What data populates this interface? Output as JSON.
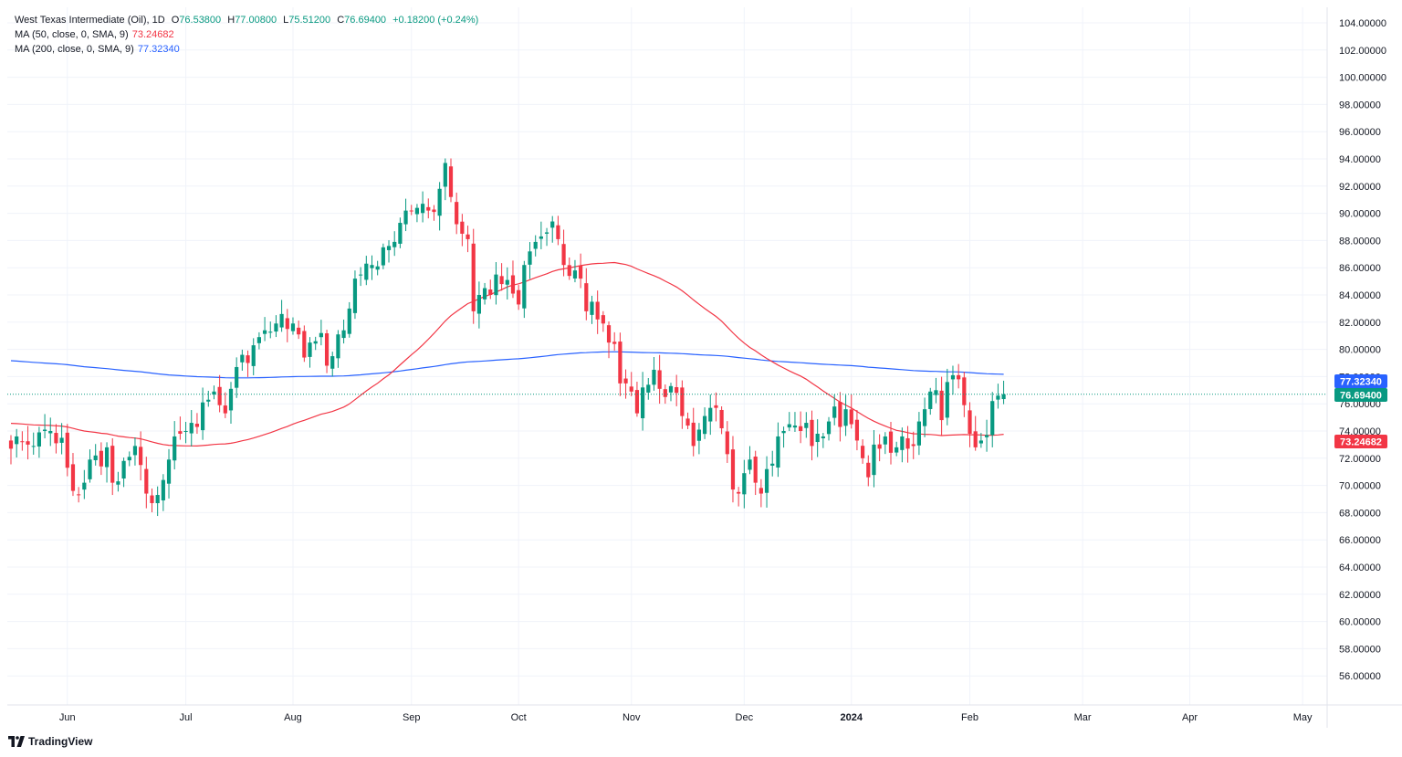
{
  "legend": {
    "symbol": "West Texas Intermediate (Oil), 1D",
    "open_label": "O",
    "open": "76.53800",
    "high_label": "H",
    "high": "77.00800",
    "low_label": "L",
    "low": "75.51200",
    "close_label": "C",
    "close": "76.69400",
    "change": "+0.18200 (+0.24%)",
    "ma50_label": "MA (50, close, 0, SMA, 9)",
    "ma50_value": "73.24682",
    "ma200_label": "MA (200, close, 0, SMA, 9)",
    "ma200_value": "77.32340"
  },
  "price_tags": {
    "ma200": "77.32340",
    "last": "76.69400",
    "ma50": "73.24682"
  },
  "brand": "TradingView",
  "colors": {
    "up": "#089981",
    "down": "#f23645",
    "ma50": "#f23645",
    "ma200": "#2962ff",
    "grid": "#f0f3fa",
    "last_line": "#089981"
  },
  "chart_data": {
    "type": "candlestick",
    "title": "West Texas Intermediate (Oil), 1D",
    "ylim": [
      54.5,
      105.0
    ],
    "y_ticks": [
      "104.00000",
      "102.00000",
      "100.00000",
      "98.00000",
      "96.00000",
      "94.00000",
      "92.00000",
      "90.00000",
      "88.00000",
      "86.00000",
      "84.00000",
      "82.00000",
      "80.00000",
      "78.00000",
      "76.00000",
      "74.00000",
      "72.00000",
      "70.00000",
      "68.00000",
      "66.00000",
      "64.00000",
      "62.00000",
      "60.00000",
      "58.00000",
      "56.00000"
    ],
    "x_ticks": [
      {
        "label": "Jun",
        "index": 10
      },
      {
        "label": "Jul",
        "index": 31
      },
      {
        "label": "Aug",
        "index": 50
      },
      {
        "label": "Sep",
        "index": 71
      },
      {
        "label": "Oct",
        "index": 90
      },
      {
        "label": "Nov",
        "index": 110
      },
      {
        "label": "Dec",
        "index": 130
      },
      {
        "label": "2024",
        "index": 149
      },
      {
        "label": "Feb",
        "index": 170
      },
      {
        "label": "Mar",
        "index": 190
      },
      {
        "label": "Apr",
        "index": 209
      },
      {
        "label": "May",
        "index": 229
      }
    ],
    "total_slots": 234,
    "series": [
      {
        "name": "WTI close",
        "type": "candle_close",
        "closes": [
          72.7,
          73.6,
          73.2,
          73.0,
          72.9,
          73.9,
          74.1,
          74.0,
          73.1,
          73.5,
          71.3,
          69.6,
          69.3,
          70.2,
          71.9,
          72.2,
          71.4,
          72.8,
          70.2,
          70.3,
          71.8,
          72.1,
          72.9,
          71.5,
          69.4,
          68.7,
          69.3,
          70.4,
          71.9,
          73.6,
          73.8,
          74.0,
          74.6,
          74.3,
          76.1,
          76.3,
          76.9,
          75.9,
          75.3,
          77.1,
          78.7,
          79.6,
          79.0,
          80.3,
          80.9,
          81.4,
          81.3,
          81.9,
          82.6,
          81.5,
          81.9,
          81.1,
          79.4,
          80.5,
          80.6,
          81.2,
          78.8,
          79.5,
          81.1,
          81.4,
          83.0,
          85.2,
          85.5,
          86.3,
          86.2,
          86.1,
          87.5,
          87.6,
          87.9,
          89.3,
          90.2,
          90.2,
          90.4,
          90.7,
          90.2,
          90.1,
          91.8,
          93.7,
          91.2,
          89.2,
          88.5,
          88.1,
          82.8,
          84.0,
          84.5,
          84.0,
          85.5,
          84.8,
          85.1,
          84.1,
          83.3,
          86.2,
          87.2,
          87.9,
          88.3,
          88.6,
          89.4,
          88.1,
          86.2,
          85.4,
          85.8,
          85.2,
          82.8,
          83.5,
          82.2,
          81.9,
          80.5,
          80.4,
          77.5,
          77.5,
          76.9,
          75.3,
          77.2,
          77.4,
          78.5,
          77.1,
          76.5,
          77.3,
          76.8,
          75.1,
          74.4,
          72.9,
          74.1,
          75.1,
          75.7,
          75.7,
          74.2,
          72.3,
          69.7,
          69.4,
          70.9,
          71.9,
          70.2,
          69.4,
          71.2,
          71.6,
          73.6,
          74.0,
          74.5,
          74.4,
          74.0,
          74.6,
          72.9,
          73.8,
          73.6,
          74.7,
          75.8,
          74.3,
          75.6,
          74.5,
          73.3,
          72.0,
          70.6,
          73.0,
          72.7,
          73.6,
          72.4,
          72.8,
          73.6,
          72.7,
          72.9,
          74.7,
          75.6,
          76.9,
          77.0,
          74.8,
          77.6,
          78.1,
          77.8,
          75.9,
          73.8,
          72.8,
          73.3,
          73.7,
          76.2,
          76.6,
          76.7
        ]
      },
      {
        "name": "MA (50, close, 0, SMA, 9)",
        "value_last": 73.24682
      },
      {
        "name": "MA (200, close, 0, SMA, 9)",
        "value_last": 77.3234
      }
    ]
  }
}
